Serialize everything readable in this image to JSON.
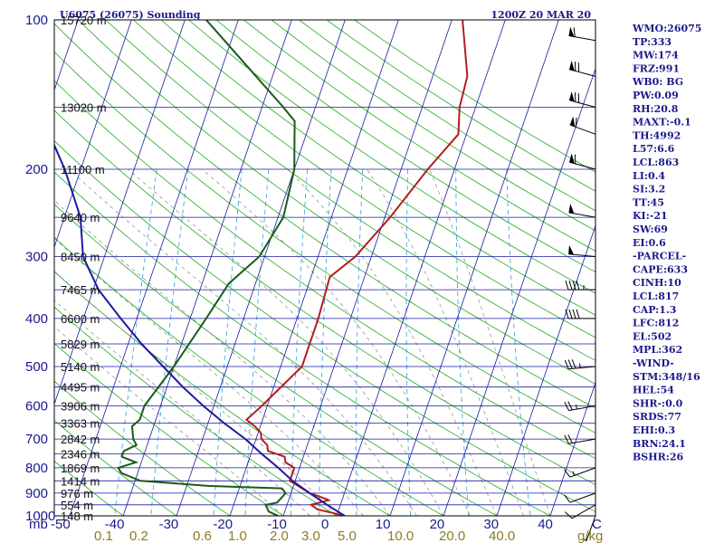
{
  "title": {
    "station": "U6075 (26075) Sounding",
    "time": "1200Z 20 MAR 20"
  },
  "chart_data": {
    "type": "skew-t log-p",
    "title": "U6075 (26075) Sounding",
    "valid_time": "1200Z 20 MAR 20",
    "pressure_axis": {
      "label": "mb",
      "range": [
        100,
        1000
      ],
      "ticks": [
        100,
        200,
        300,
        400,
        500,
        600,
        700,
        800,
        900,
        1000
      ]
    },
    "temperature_axis": {
      "unit": "C",
      "range": [
        -50,
        50
      ],
      "ticks": [
        "-50",
        "-40",
        "-30",
        "-20",
        "-10",
        "0",
        "10",
        "20",
        "30",
        "40",
        "C"
      ]
    },
    "mixing_ratio_axis": {
      "unit": "g/kg",
      "ticks": [
        "0.1",
        "0.2",
        "0.6",
        "1.0",
        "2.0",
        "3.0",
        "5.0",
        "10.0",
        "20.0",
        "40.0",
        "g/kg"
      ]
    },
    "height_labels": [
      {
        "text": "15720 m",
        "p": 100
      },
      {
        "text": "13020 m",
        "p": 150
      },
      {
        "text": "11100 m",
        "p": 200
      },
      {
        "text": "9640 m",
        "p": 250
      },
      {
        "text": "8450 m",
        "p": 300
      },
      {
        "text": "7465 m",
        "p": 350
      },
      {
        "text": "6600 m",
        "p": 400
      },
      {
        "text": "5829 m",
        "p": 450
      },
      {
        "text": "5140 m",
        "p": 500
      },
      {
        "text": "4495 m",
        "p": 550
      },
      {
        "text": "3906 m",
        "p": 600
      },
      {
        "text": "3363 m",
        "p": 650
      },
      {
        "text": "2842 m",
        "p": 700
      },
      {
        "text": "2346 m",
        "p": 750
      },
      {
        "text": "1869 m",
        "p": 800
      },
      {
        "text": "1414 m",
        "p": 850
      },
      {
        "text": "976 m",
        "p": 900
      },
      {
        "text": "554 m",
        "p": 950
      },
      {
        "text": "148 m",
        "p": 1000
      }
    ],
    "series": [
      {
        "name": "temperature",
        "color": "#b21e1e",
        "points": [
          [
            1000,
            1.5
          ],
          [
            970,
            -4
          ],
          [
            950,
            -5.5
          ],
          [
            930,
            -2.5
          ],
          [
            925,
            -3
          ],
          [
            900,
            -6.5
          ],
          [
            850,
            -11
          ],
          [
            800,
            -11
          ],
          [
            780,
            -13
          ],
          [
            760,
            -13.5
          ],
          [
            740,
            -17
          ],
          [
            720,
            -17.5
          ],
          [
            700,
            -19
          ],
          [
            680,
            -19.5
          ],
          [
            660,
            -21
          ],
          [
            640,
            -23
          ],
          [
            600,
            -21
          ],
          [
            500,
            -16
          ],
          [
            400,
            -16
          ],
          [
            330,
            -16.5
          ],
          [
            300,
            -13
          ],
          [
            250,
            -9
          ],
          [
            200,
            -5
          ],
          [
            170,
            -1.5
          ],
          [
            150,
            -3
          ],
          [
            130,
            -3.5
          ],
          [
            100,
            -8
          ]
        ]
      },
      {
        "name": "dewpoint",
        "color": "#1a5c1a",
        "points": [
          [
            1000,
            -11
          ],
          [
            980,
            -13
          ],
          [
            950,
            -14
          ],
          [
            940,
            -12
          ],
          [
            900,
            -11
          ],
          [
            880,
            -12
          ],
          [
            870,
            -26
          ],
          [
            850,
            -39
          ],
          [
            820,
            -43
          ],
          [
            800,
            -44
          ],
          [
            780,
            -41
          ],
          [
            760,
            -44
          ],
          [
            740,
            -44
          ],
          [
            720,
            -42
          ],
          [
            700,
            -43
          ],
          [
            660,
            -44
          ],
          [
            640,
            -43
          ],
          [
            600,
            -43
          ],
          [
            500,
            -40
          ],
          [
            400,
            -37
          ],
          [
            340,
            -35
          ],
          [
            300,
            -31
          ],
          [
            250,
            -29
          ],
          [
            200,
            -30
          ],
          [
            160,
            -33
          ],
          [
            150,
            -36
          ],
          [
            100,
            -56
          ]
        ]
      },
      {
        "name": "parcel",
        "color": "#1a1aa0",
        "points": [
          [
            1000,
            1.5
          ],
          [
            950,
            -2.5
          ],
          [
            900,
            -6.5
          ],
          [
            850,
            -10.5
          ],
          [
            800,
            -14
          ],
          [
            750,
            -18
          ],
          [
            700,
            -22
          ],
          [
            650,
            -27
          ],
          [
            600,
            -32
          ],
          [
            550,
            -37
          ],
          [
            500,
            -42
          ],
          [
            450,
            -47.5
          ],
          [
            400,
            -53
          ],
          [
            350,
            -59
          ],
          [
            300,
            -64
          ],
          [
            250,
            -67
          ],
          [
            200,
            -73
          ],
          [
            150,
            -82
          ],
          [
            100,
            -93
          ]
        ]
      }
    ],
    "wind_barbs": [
      {
        "p": 1000,
        "dir": 200,
        "kt": 5
      },
      {
        "p": 950,
        "dir": 240,
        "kt": 10
      },
      {
        "p": 900,
        "dir": 250,
        "kt": 10
      },
      {
        "p": 800,
        "dir": 250,
        "kt": 15
      },
      {
        "p": 700,
        "dir": 260,
        "kt": 20
      },
      {
        "p": 600,
        "dir": 260,
        "kt": 25
      },
      {
        "p": 500,
        "dir": 265,
        "kt": 35
      },
      {
        "p": 400,
        "dir": 270,
        "kt": 40
      },
      {
        "p": 350,
        "dir": 270,
        "kt": 45
      },
      {
        "p": 300,
        "dir": 275,
        "kt": 50
      },
      {
        "p": 250,
        "dir": 280,
        "kt": 50
      },
      {
        "p": 200,
        "dir": 285,
        "kt": 60
      },
      {
        "p": 170,
        "dir": 290,
        "kt": 60
      },
      {
        "p": 150,
        "dir": 285,
        "kt": 70
      },
      {
        "p": 130,
        "dir": 285,
        "kt": 70
      },
      {
        "p": 110,
        "dir": 280,
        "kt": 60
      }
    ]
  },
  "indices": [
    "WMO:26075",
    "TP:333",
    "MW:174",
    "FRZ:991",
    "WB0: BG",
    "PW:0.09",
    "RH:20.8",
    "MAXT:-0.1",
    "TH:4992",
    "L57:6.6",
    "LCL:863",
    "LI:0.4",
    "SI:3.2",
    "TT:45",
    "KI:-21",
    "SW:69",
    "EI:0.6",
    "-PARCEL-",
    "CAPE:633",
    "CINH:10",
    "LCL:817",
    "CAP:1.3",
    "LFC:812",
    "EL:502",
    "MPL:362",
    "-WIND-",
    "STM:348/16",
    "HEL:54",
    "SHR-:0.0",
    "SRDS:77",
    "EHI:0.3",
    "BRN:24.1",
    "BSHR:26"
  ],
  "colors": {
    "isobar": "#1a1aa0",
    "isotherm": "#1a1aa0",
    "dry_adiabat": "#22aa22",
    "moist_adiabat": "#888888",
    "mixing_ratio": "#2aa0e0",
    "frame": "#000000"
  }
}
